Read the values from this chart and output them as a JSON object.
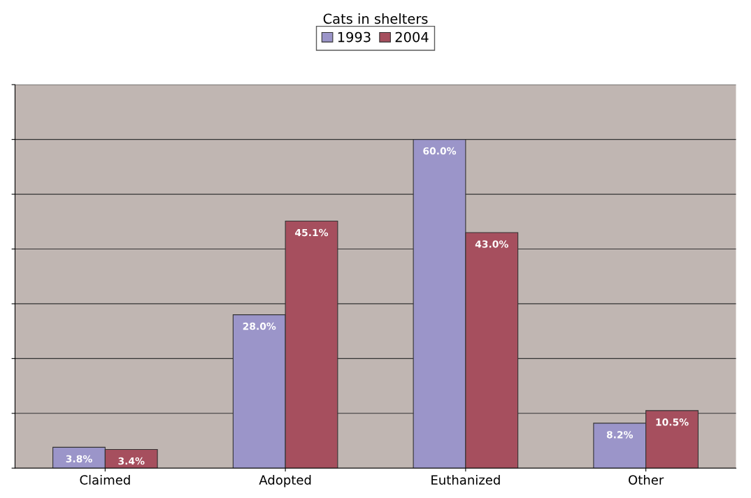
{
  "chart_data": {
    "type": "bar",
    "title": "Cats in shelters",
    "categories": [
      "Claimed",
      "Adopted",
      "Euthanized",
      "Other"
    ],
    "series": [
      {
        "name": "1993",
        "color": "#9b95c9",
        "values": [
          3.8,
          28.0,
          60.0,
          8.2
        ],
        "value_labels": [
          "3.8%",
          "28.0%",
          "60.0%",
          "8.2%"
        ]
      },
      {
        "name": "2004",
        "color": "#a64f5e",
        "values": [
          3.4,
          45.1,
          43.0,
          10.5
        ],
        "value_labels": [
          "3.4%",
          "45.1%",
          "43.0%",
          "10.5%"
        ]
      }
    ],
    "ylim": [
      0,
      70
    ],
    "yticks": [
      {
        "value": 0,
        "label": null
      },
      {
        "value": 10,
        "label": null
      },
      {
        "value": 20,
        "label": null
      },
      {
        "value": 30,
        "label": null
      },
      {
        "value": 40,
        "label": null
      },
      {
        "value": 50,
        "label": null
      },
      {
        "value": 60,
        "label": null
      },
      {
        "value": 70,
        "label": null
      }
    ],
    "tick_labels": "x",
    "grid": "y",
    "legend": "top"
  }
}
